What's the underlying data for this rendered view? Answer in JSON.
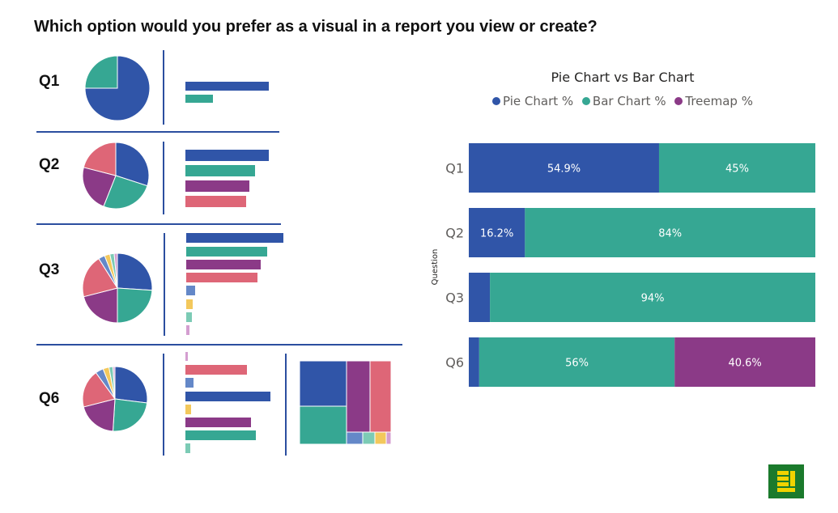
{
  "page": {
    "title": "Which option would you prefer as a visual in a report you view or create?"
  },
  "colors": {
    "pie": "#3055a8",
    "bar": "#36a793",
    "treemap": "#8b3a87",
    "pink": "#de6677",
    "lightblue": "#6488c8",
    "yellow": "#f3c85c",
    "mint": "#7ccbb5",
    "lilac": "#d49ed0",
    "divider": "#2b4e9f",
    "brand": "#1b7a2c",
    "brand_mark": "#f1d300"
  },
  "thumbnails": {
    "q1": {
      "label": "Q1"
    },
    "q2": {
      "label": "Q2"
    },
    "q3": {
      "label": "Q3"
    },
    "q6": {
      "label": "Q6"
    }
  },
  "chart_data": {
    "type": "bar",
    "orientation": "horizontal",
    "stacked": "100%",
    "title": "Pie Chart vs Bar Chart",
    "xlabel": "",
    "ylabel": "Question",
    "categories": [
      "Q1",
      "Q2",
      "Q3",
      "Q6"
    ],
    "xlim": [
      0,
      100
    ],
    "legend_position": "top-center",
    "grid": false,
    "series": [
      {
        "name": "Pie Chart %",
        "color": "#3055a8",
        "values": [
          54.9,
          16.2,
          6.1,
          3.0
        ],
        "labels": [
          "54.9%",
          "16.2%",
          "",
          ""
        ]
      },
      {
        "name": "Bar Chart %",
        "color": "#36a793",
        "values": [
          45.1,
          83.8,
          93.9,
          56.4
        ],
        "labels": [
          "45%",
          "84%",
          "94%",
          "56%"
        ]
      },
      {
        "name": "Treemap %",
        "color": "#8b3a87",
        "values": [
          0,
          0,
          0,
          40.6
        ],
        "labels": [
          "",
          "",
          "",
          "40.6%"
        ]
      }
    ]
  }
}
